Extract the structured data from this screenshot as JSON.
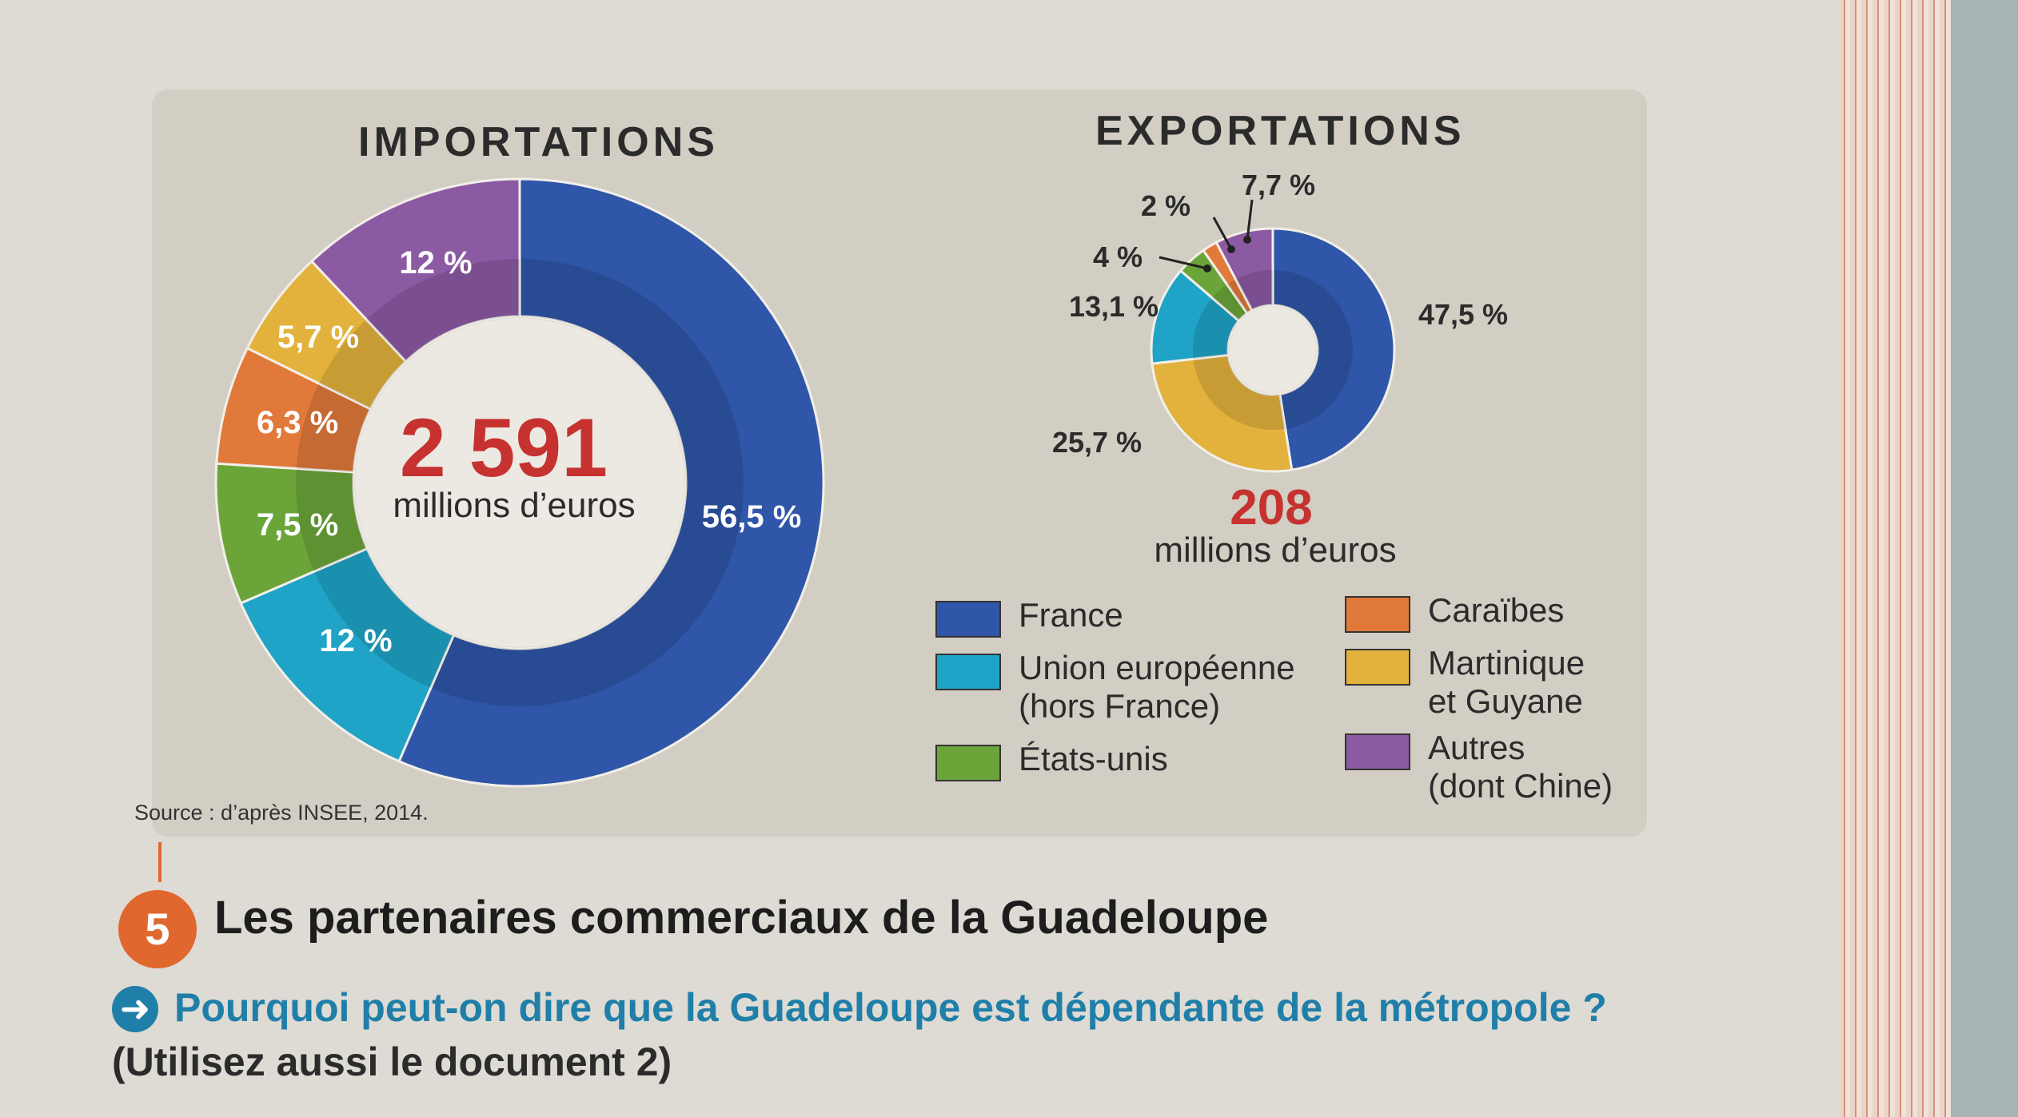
{
  "chart_data": [
    {
      "type": "pie",
      "title": "IMPORTATIONS",
      "total": "2 591",
      "unit": "millions d’euros",
      "slices": [
        {
          "label": "France",
          "value": 56.5,
          "text": "56,5 %"
        },
        {
          "label": "Union européenne (hors France)",
          "value": 12,
          "text": "12 %"
        },
        {
          "label": "États-unis",
          "value": 7.5,
          "text": "7,5 %"
        },
        {
          "label": "Caraïbes",
          "value": 6.3,
          "text": "6,3 %"
        },
        {
          "label": "Martinique et Guyane",
          "value": 5.7,
          "text": "5,7 %"
        },
        {
          "label": "Autres (dont Chine)",
          "value": 12,
          "text": "12 %"
        }
      ]
    },
    {
      "type": "pie",
      "title": "EXPORTATIONS",
      "total": "208",
      "unit": "millions d’euros",
      "slices": [
        {
          "label": "France",
          "value": 47.5,
          "text": "47,5 %"
        },
        {
          "label": "Martinique et Guyane",
          "value": 25.7,
          "text": "25,7 %"
        },
        {
          "label": "Union européenne (hors France)",
          "value": 13.1,
          "text": "13,1 %"
        },
        {
          "label": "États-unis",
          "value": 4,
          "text": "4 %"
        },
        {
          "label": "Caraïbes",
          "value": 2,
          "text": "2 %"
        },
        {
          "label": "Autres (dont Chine)",
          "value": 7.7,
          "text": "7,7 %"
        }
      ]
    }
  ],
  "colors": {
    "France": "#2f56a8",
    "Union européenne (hors France)": "#1fa3c7",
    "États-unis": "#6ba53a",
    "Caraïbes": "#e1793a",
    "Martinique et Guyane": "#e3b23c",
    "Autres (dont Chine)": "#8c5aa3"
  },
  "legend": [
    {
      "label": "France",
      "color": "#2f56a8"
    },
    {
      "label": "Caraïbes",
      "color": "#e1793a"
    },
    {
      "label": "Union européenne\n(hors France)",
      "color": "#1fa3c7"
    },
    {
      "label": "Martinique\net Guyane",
      "color": "#e3b23c"
    },
    {
      "label": "États-unis",
      "color": "#6ba53a"
    },
    {
      "label": "Autres\n(dont Chine)",
      "color": "#8c5aa3"
    }
  ],
  "source": "Source : d’après INSEE, 2014.",
  "document": {
    "number": "5",
    "title": "Les partenaires commerciaux de la Guadeloupe",
    "question": "Pourquoi peut-on dire que la Guadeloupe est dépendante de la métropole ?",
    "question_note": "(Utilisez aussi le document 2)"
  }
}
